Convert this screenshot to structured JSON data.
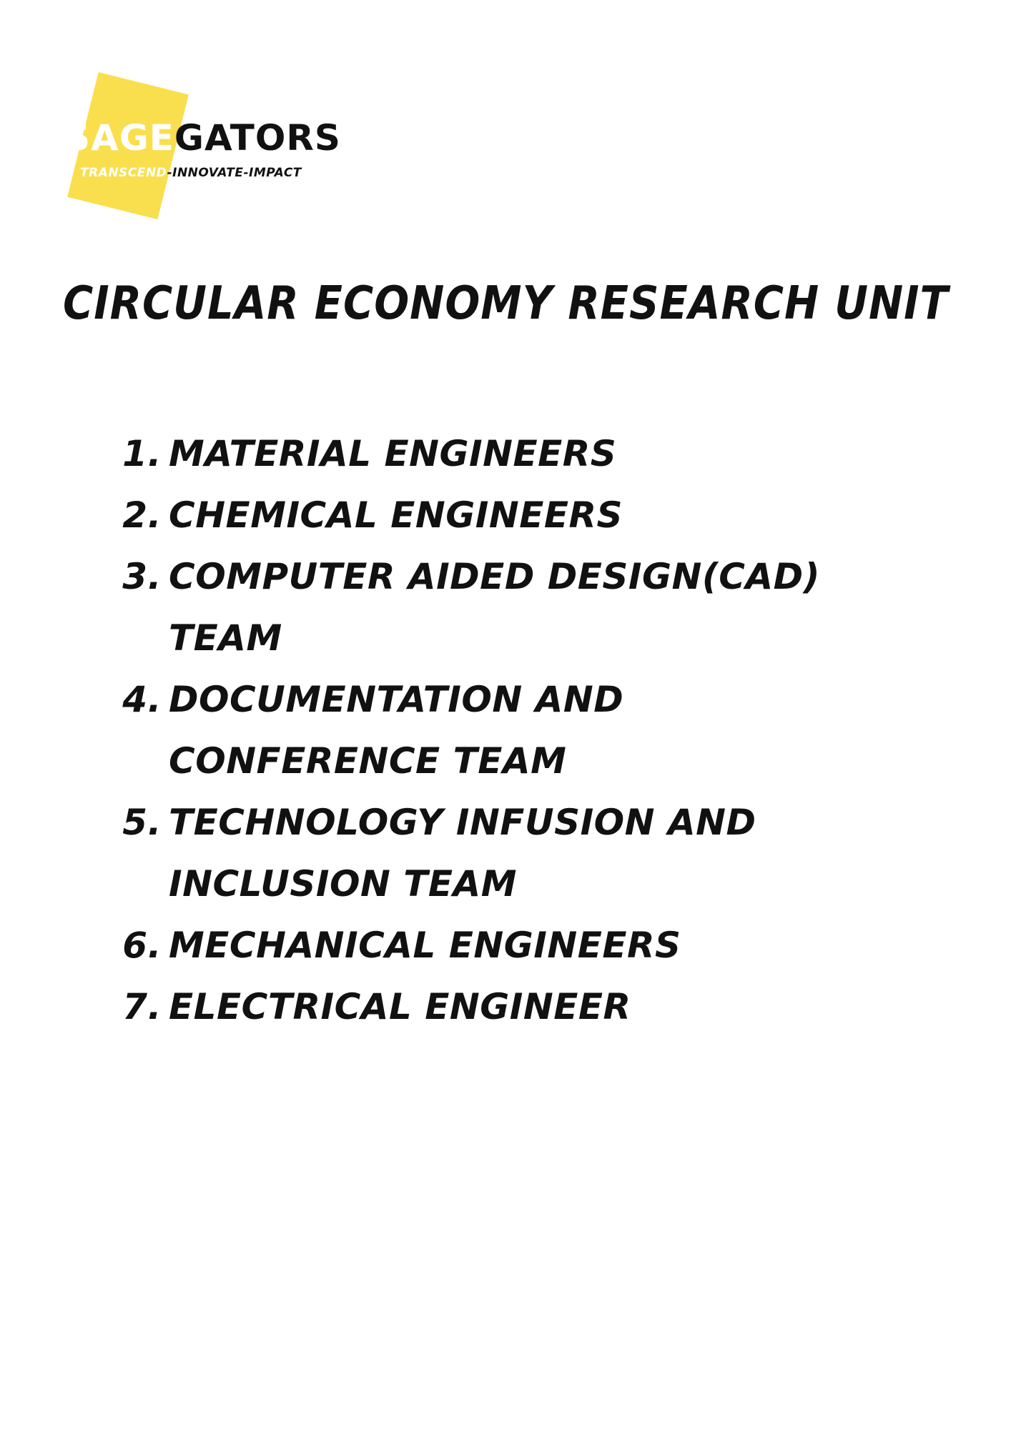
{
  "logo": {
    "name_part1": "SAGE",
    "name_part2": "GATORS",
    "tagline_part1": "TRANSCEND",
    "tagline_part2": "-INNOVATE-IMPACT",
    "accent_color": "#f9df4e"
  },
  "title": "CIRCULAR ECONOMY RESEARCH UNIT",
  "teams": [
    {
      "number": "1.",
      "label": "MATERIAL ENGINEERS"
    },
    {
      "number": "2.",
      "label": "CHEMICAL ENGINEERS"
    },
    {
      "number": "3.",
      "label": "COMPUTER AIDED DESIGN(CAD) TEAM"
    },
    {
      "number": "4.",
      "label": "DOCUMENTATION AND CONFERENCE TEAM"
    },
    {
      "number": "5.",
      "label": "TECHNOLOGY INFUSION AND INCLUSION TEAM"
    },
    {
      "number": "6.",
      "label": "MECHANICAL ENGINEERS"
    },
    {
      "number": "7.",
      "label": "ELECTRICAL ENGINEER"
    }
  ]
}
